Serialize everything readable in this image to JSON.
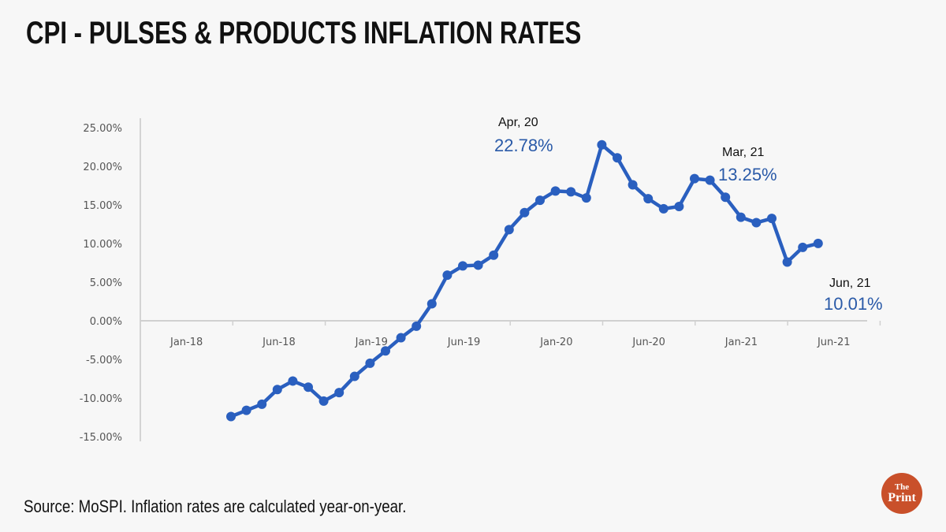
{
  "header": {
    "title": "CPI - PULSES & PRODUCTS INFLATION RATES"
  },
  "footer": {
    "source": "Source: MoSPI. Inflation rates are calculated year-on-year.",
    "logo_top": "The",
    "logo_bottom": "Print",
    "logo_color": "#c9502a"
  },
  "chart_data": {
    "type": "line",
    "title": "CPI - PULSES & PRODUCTS INFLATION RATES",
    "xlabel": "",
    "ylabel": "",
    "ylim": [
      -15,
      25
    ],
    "yticks": [
      25,
      20,
      15,
      10,
      5,
      0,
      -5,
      -10,
      -15
    ],
    "ytick_labels": [
      "25.00%",
      "20.00%",
      "15.00%",
      "10.00%",
      "5.00%",
      "0.00%",
      "-5.00%",
      "-10.00%",
      "-15.00%"
    ],
    "xtick_labels": [
      "Jan-18",
      "Jun-18",
      "Jan-19",
      "Jun-19",
      "Jan-20",
      "Jun-20",
      "Jan-21",
      "Jun-21"
    ],
    "grid": false,
    "line_color": "#2a5fbf",
    "x": [
      "Apr-18",
      "May-18",
      "Jun-18",
      "Jul-18",
      "Aug-18",
      "Sep-18",
      "Oct-18",
      "Nov-18",
      "Dec-18",
      "Jan-19",
      "Feb-19",
      "Mar-19",
      "Apr-19",
      "May-19",
      "Jun-19",
      "Jul-19",
      "Aug-19",
      "Sep-19",
      "Oct-19",
      "Nov-19",
      "Dec-19",
      "Jan-20",
      "Feb-20",
      "Mar-20",
      "Apr-20",
      "May-20",
      "Jun-20",
      "Jul-20",
      "Aug-20",
      "Sep-20",
      "Oct-20",
      "Nov-20",
      "Dec-20",
      "Jan-21",
      "Feb-21",
      "Mar-21",
      "Apr-21",
      "May-21",
      "Jun-21"
    ],
    "series": [
      {
        "name": "Pulses & Products inflation (%)",
        "values": [
          -12.4,
          -11.6,
          -10.8,
          -8.9,
          -7.8,
          -8.6,
          -10.4,
          -9.3,
          -7.2,
          -5.5,
          -3.9,
          -2.2,
          -0.7,
          2.2,
          5.9,
          7.1,
          7.2,
          8.5,
          11.8,
          14.0,
          15.6,
          16.8,
          16.7,
          15.9,
          22.78,
          21.1,
          17.6,
          15.8,
          14.5,
          14.8,
          18.4,
          18.2,
          16.0,
          13.4,
          12.7,
          13.25,
          7.6,
          9.5,
          10.01
        ]
      }
    ],
    "annotations": [
      {
        "date": "Apr, 20",
        "value": "22.78%"
      },
      {
        "date": "Mar, 21",
        "value": "13.25%"
      },
      {
        "date": "Jun, 21",
        "value": "10.01%"
      }
    ]
  }
}
